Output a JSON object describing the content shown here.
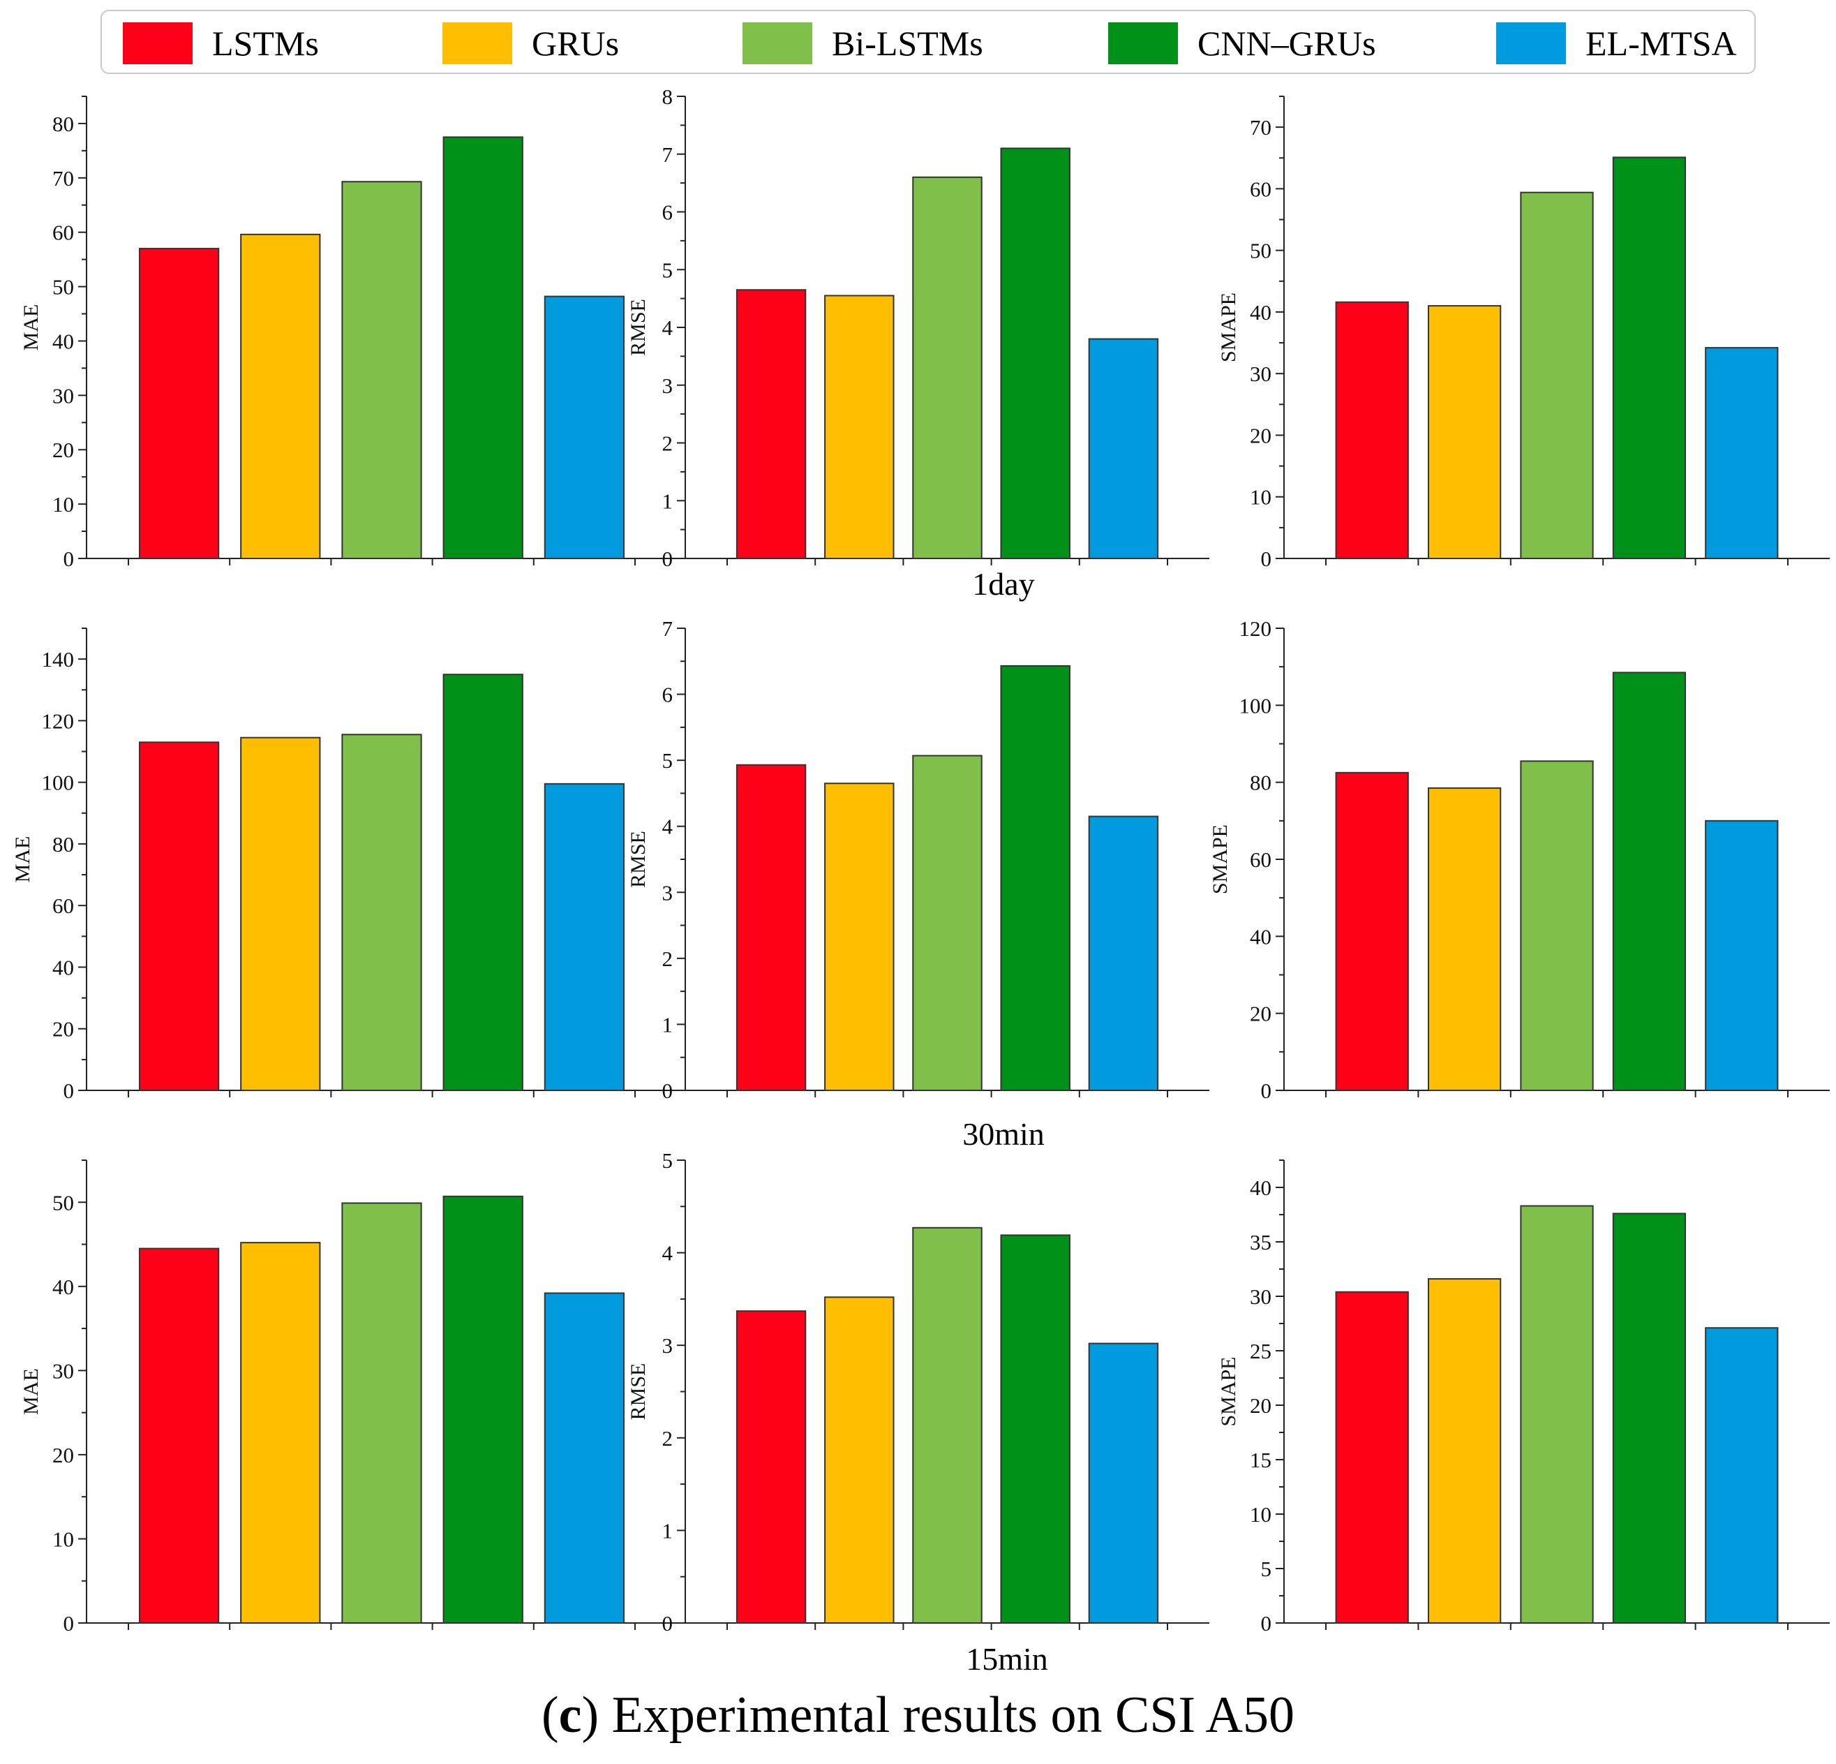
{
  "legend": [
    {
      "label": "LSTMs",
      "color": "#FF0019"
    },
    {
      "label": "GRUs",
      "color": "#FFBF00"
    },
    {
      "label": "Bi-LSTMs",
      "color": "#80C04A"
    },
    {
      "label": "CNN–GRUs",
      "color": "#009119"
    },
    {
      "label": "EL-MTSA",
      "color": "#009BDE"
    }
  ],
  "row_labels": [
    "1day",
    "30min",
    "15min"
  ],
  "caption": {
    "prefix": "(",
    "letter": "c",
    "suffix": ") Experimental results on CSI A50"
  },
  "chart_data": [
    {
      "type": "bar",
      "row": "1day",
      "ylabel": "MAE",
      "ylim": [
        0,
        85
      ],
      "yticks": [
        0,
        10,
        20,
        30,
        40,
        50,
        60,
        70,
        80
      ],
      "categories": [
        "LSTMs",
        "GRUs",
        "Bi-LSTMs",
        "CNN–GRUs",
        "EL-MTSA"
      ],
      "values": [
        57,
        59.6,
        69.3,
        77.5,
        48.2
      ]
    },
    {
      "type": "bar",
      "row": "1day",
      "ylabel": "RMSE",
      "ylim": [
        0,
        8
      ],
      "yticks": [
        0,
        1,
        2,
        3,
        4,
        5,
        6,
        7,
        8
      ],
      "categories": [
        "LSTMs",
        "GRUs",
        "Bi-LSTMs",
        "CNN–GRUs",
        "EL-MTSA"
      ],
      "values": [
        4.65,
        4.55,
        6.6,
        7.1,
        3.8
      ]
    },
    {
      "type": "bar",
      "row": "1day",
      "ylabel": "SMAPE",
      "ylim": [
        0,
        75
      ],
      "yticks": [
        0,
        10,
        20,
        30,
        40,
        50,
        60,
        70
      ],
      "categories": [
        "LSTMs",
        "GRUs",
        "Bi-LSTMs",
        "CNN–GRUs",
        "EL-MTSA"
      ],
      "values": [
        41.6,
        41,
        59.4,
        65.1,
        34.2
      ]
    },
    {
      "type": "bar",
      "row": "30min",
      "ylabel": "MAE",
      "ylim": [
        0,
        150
      ],
      "yticks": [
        0,
        20,
        40,
        60,
        80,
        100,
        120,
        140
      ],
      "categories": [
        "LSTMs",
        "GRUs",
        "Bi-LSTMs",
        "CNN–GRUs",
        "EL-MTSA"
      ],
      "values": [
        113,
        114.5,
        115.5,
        135,
        99.5
      ]
    },
    {
      "type": "bar",
      "row": "30min",
      "ylabel": "RMSE",
      "ylim": [
        0,
        7
      ],
      "yticks": [
        0,
        1,
        2,
        3,
        4,
        5,
        6,
        7
      ],
      "categories": [
        "LSTMs",
        "GRUs",
        "Bi-LSTMs",
        "CNN–GRUs",
        "EL-MTSA"
      ],
      "values": [
        4.93,
        4.65,
        5.07,
        6.43,
        4.15
      ]
    },
    {
      "type": "bar",
      "row": "30min",
      "ylabel": "SMAPE",
      "ylim": [
        0,
        120
      ],
      "yticks": [
        0,
        20,
        40,
        60,
        80,
        100,
        120
      ],
      "categories": [
        "LSTMs",
        "GRUs",
        "Bi-LSTMs",
        "CNN–GRUs",
        "EL-MTSA"
      ],
      "values": [
        82.5,
        78.5,
        85.5,
        108.5,
        70
      ]
    },
    {
      "type": "bar",
      "row": "15min",
      "ylabel": "MAE",
      "ylim": [
        0,
        55
      ],
      "yticks": [
        0,
        10,
        20,
        30,
        40,
        50
      ],
      "categories": [
        "LSTMs",
        "GRUs",
        "Bi-LSTMs",
        "CNN–GRUs",
        "EL-MTSA"
      ],
      "values": [
        44.5,
        45.2,
        49.9,
        50.7,
        39.2
      ]
    },
    {
      "type": "bar",
      "row": "15min",
      "ylabel": "RMSE",
      "ylim": [
        0,
        5
      ],
      "yticks": [
        0,
        1,
        2,
        3,
        4,
        5
      ],
      "categories": [
        "LSTMs",
        "GRUs",
        "Bi-LSTMs",
        "CNN–GRUs",
        "EL-MTSA"
      ],
      "values": [
        3.37,
        3.52,
        4.27,
        4.19,
        3.02
      ]
    },
    {
      "type": "bar",
      "row": "15min",
      "ylabel": "SMAPE",
      "ylim": [
        0,
        42.5
      ],
      "yticks": [
        0,
        5,
        10,
        15,
        20,
        25,
        30,
        35,
        40
      ],
      "categories": [
        "LSTMs",
        "GRUs",
        "Bi-LSTMs",
        "CNN–GRUs",
        "EL-MTSA"
      ],
      "values": [
        30.4,
        31.6,
        38.3,
        37.6,
        27.1
      ]
    }
  ]
}
